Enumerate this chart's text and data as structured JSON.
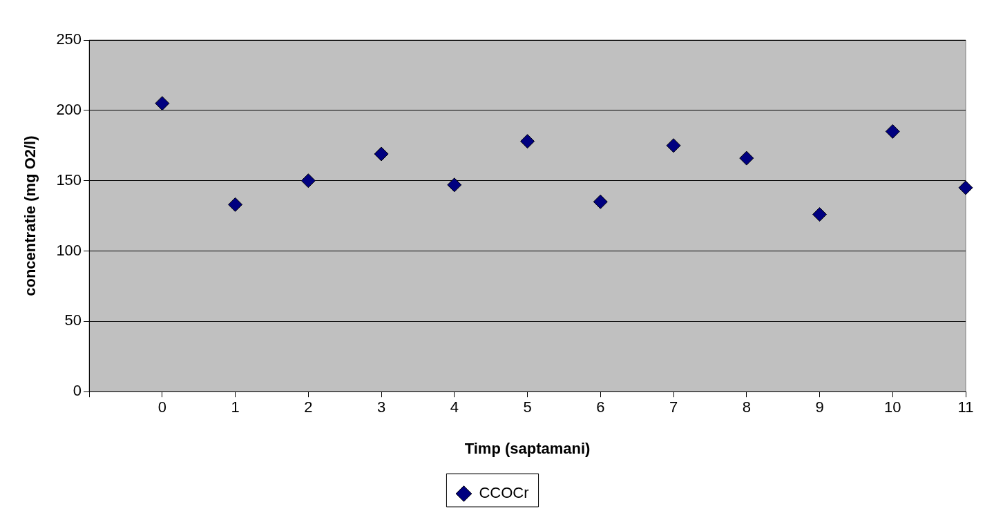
{
  "chart_data": {
    "type": "scatter",
    "xlabel": "Timp (saptamani)",
    "ylabel": "concentratie (mg O2/l)",
    "x": [
      0,
      1,
      2,
      3,
      4,
      5,
      6,
      7,
      8,
      9,
      10,
      11
    ],
    "series": [
      {
        "name": "CCOCr",
        "color": "#000080",
        "values": [
          205,
          133,
          150,
          169,
          147,
          178,
          135,
          175,
          166,
          126,
          185,
          145
        ]
      }
    ],
    "xlim": [
      -1,
      11
    ],
    "xticks": [
      {
        "value": -1,
        "label": null
      },
      0,
      1,
      2,
      3,
      4,
      5,
      6,
      7,
      8,
      9,
      10,
      11
    ],
    "ylim": [
      0,
      250
    ],
    "yticks": [
      0,
      50,
      100,
      150,
      200,
      250
    ],
    "grid": "y",
    "legend": "bottom",
    "marker": "diamond"
  }
}
